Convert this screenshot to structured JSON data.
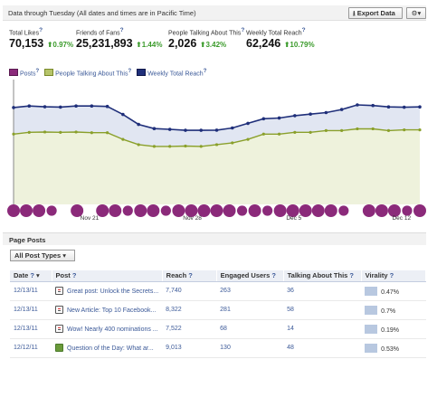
{
  "header": {
    "date_note": "Data through Tuesday (All dates and times are in Pacific Time)",
    "export_label": "Export Data",
    "export_icon": "download-icon",
    "gear_icon": "gear-icon"
  },
  "metrics": [
    {
      "label": "Total Likes",
      "value": "70,153",
      "change": "0.97%",
      "x": 10
    },
    {
      "label": "Friends of Fans",
      "value": "25,231,893",
      "change": "1.44%",
      "x": 84
    },
    {
      "label": "People Talking About This",
      "value": "2,026",
      "change": "3.42%",
      "x": 186
    },
    {
      "label": "Weekly Total Reach",
      "value": "62,246",
      "change": "10.79%",
      "x": 272
    }
  ],
  "legend": [
    {
      "label": "Posts",
      "color": "#8b2a7a",
      "fill": "#8b2a7a"
    },
    {
      "label": "People Talking About This",
      "color": "#8aa02b",
      "fill": "#b6c46a"
    },
    {
      "label": "Weekly Total Reach",
      "color": "#1f2f7a",
      "fill": "#1f2f7a"
    }
  ],
  "chart_data": {
    "type": "area",
    "x_labels": [
      "Nov 21",
      "Nov 28",
      "Dec 5",
      "Dec 12"
    ],
    "reach": [
      63000,
      64000,
      63500,
      63300,
      64000,
      64000,
      63700,
      58500,
      52000,
      49300,
      48800,
      48200,
      48200,
      48300,
      49700,
      52700,
      55700,
      56200,
      57700,
      58700,
      59700,
      61700,
      64700,
      64300,
      63400,
      63200,
      63400
    ],
    "talking": [
      2000,
      2050,
      2060,
      2050,
      2060,
      2040,
      2040,
      1850,
      1700,
      1650,
      1650,
      1660,
      1650,
      1700,
      1750,
      1850,
      2000,
      2000,
      2050,
      2050,
      2100,
      2100,
      2150,
      2150,
      2100,
      2120,
      2120
    ],
    "posts": [
      4,
      4,
      4,
      2,
      0,
      4,
      0,
      4,
      4,
      2,
      4,
      4,
      2,
      4,
      4,
      4,
      4,
      4,
      2,
      4,
      2,
      4,
      4,
      4,
      4,
      4,
      2,
      0,
      4,
      4,
      4,
      2,
      4
    ],
    "reach_ylim": [
      0,
      80000
    ],
    "talking_ylim": [
      0,
      3500
    ],
    "colors": {
      "reach_line": "#1f2f7a",
      "reach_fill": "#e1e6f2",
      "talking_line": "#8aa02b",
      "talking_fill": "#eef2dc",
      "posts": "#8b2a7a"
    }
  },
  "page_posts": {
    "title": "Page Posts",
    "filter_label": "All Post Types",
    "columns": [
      "Date",
      "Post",
      "Reach",
      "Engaged Users",
      "Talking About This",
      "Virality"
    ],
    "rows": [
      {
        "date": "12/13/11",
        "icon": "note-icon",
        "post": "Great post: Unlock the Secrets...",
        "reach": "7,740",
        "engaged": "263",
        "talking": "36",
        "virality": "0.47%"
      },
      {
        "date": "12/13/11",
        "icon": "note-icon",
        "post": "New Article: Top 10 Facebook...",
        "reach": "8,322",
        "engaged": "281",
        "talking": "58",
        "virality": "0.7%"
      },
      {
        "date": "12/13/11",
        "icon": "note-icon",
        "post": "Wow! Nearly 400 nominations ...",
        "reach": "7,522",
        "engaged": "68",
        "talking": "14",
        "virality": "0.19%"
      },
      {
        "date": "12/12/11",
        "icon": "question-icon",
        "post": "Question of the Day: What ar...",
        "reach": "9,013",
        "engaged": "130",
        "talking": "48",
        "virality": "0.53%"
      }
    ]
  }
}
